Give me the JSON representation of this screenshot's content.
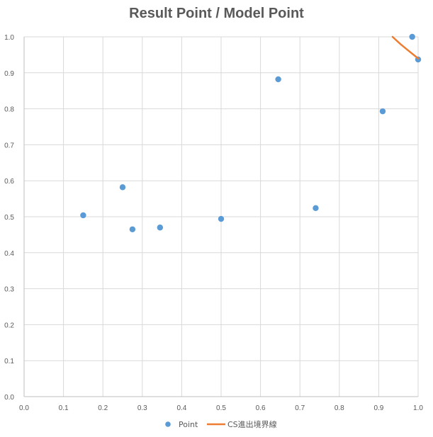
{
  "chart_data": {
    "type": "scatter",
    "title": "Result Point / Model Point",
    "xlim": [
      0.0,
      1.0
    ],
    "ylim": [
      0.0,
      1.0
    ],
    "x_ticks": [
      "0.0",
      "0.1",
      "0.2",
      "0.3",
      "0.4",
      "0.5",
      "0.6",
      "0.7",
      "0.8",
      "0.9",
      "1.0"
    ],
    "y_ticks": [
      "0.0",
      "0.1",
      "0.2",
      "0.3",
      "0.4",
      "0.5",
      "0.6",
      "0.7",
      "0.8",
      "0.9",
      "1.0"
    ],
    "grid": true,
    "legend_position": "bottom",
    "series": [
      {
        "name": "Point",
        "kind": "markers",
        "color": "#5B9BD5",
        "points": [
          {
            "x": 0.15,
            "y": 0.504
          },
          {
            "x": 0.25,
            "y": 0.582
          },
          {
            "x": 0.275,
            "y": 0.465
          },
          {
            "x": 0.345,
            "y": 0.47
          },
          {
            "x": 0.5,
            "y": 0.494
          },
          {
            "x": 0.645,
            "y": 0.882
          },
          {
            "x": 0.74,
            "y": 0.524
          },
          {
            "x": 0.91,
            "y": 0.793
          },
          {
            "x": 0.985,
            "y": 1.0
          },
          {
            "x": 1.0,
            "y": 0.937
          }
        ]
      },
      {
        "name": "CS進出境界線",
        "kind": "line",
        "color": "#ED7D31",
        "points": [
          {
            "x": 0.935,
            "y": 1.0
          },
          {
            "x": 0.955,
            "y": 0.98
          },
          {
            "x": 0.975,
            "y": 0.962
          },
          {
            "x": 1.0,
            "y": 0.94
          }
        ]
      }
    ]
  }
}
